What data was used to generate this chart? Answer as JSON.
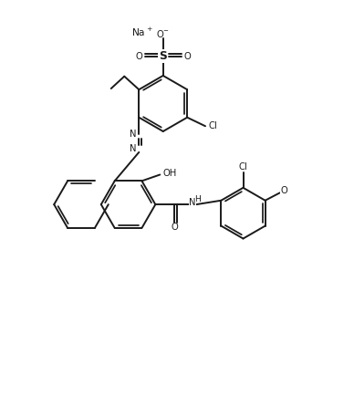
{
  "bg_color": "#ffffff",
  "line_color": "#1a1a1a",
  "figsize": [
    3.88,
    4.33
  ],
  "dpi": 100,
  "xlim": [
    0,
    10
  ],
  "ylim": [
    0,
    11.2
  ]
}
